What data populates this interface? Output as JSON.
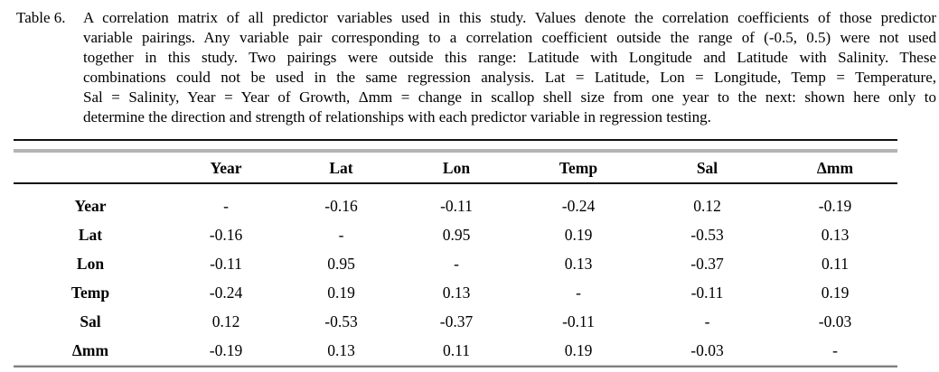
{
  "caption": {
    "label": "Table 6.",
    "lines": [
      "A correlation matrix of all predictor variables used in this study. Values denote the correlation coefficients of those predictor",
      "variable pairings. Any variable pair corresponding to a correlation coefficient outside the range of (-0.5, 0.5) were not used",
      "together in this study. Two pairings were outside this range: Latitude with Longitude and Latitude with Salinity. These",
      "combinations could not be used in the same regression analysis. Lat = Latitude, Lon = Longitude, Temp = Temperature,",
      "Sal = Salinity, Year = Year of Growth, Δmm = change in scallop shell size from one year to the next: shown here only to",
      "determine the direction and strength of relationships with each predictor variable in regression testing."
    ]
  },
  "table": {
    "columns": [
      "",
      "Year",
      "Lat",
      "Lon",
      "Temp",
      "Sal",
      "Δmm"
    ],
    "rows": [
      {
        "label": "Year",
        "values": [
          "-",
          "-0.16",
          "-0.11",
          "-0.24",
          "0.12",
          "-0.19"
        ]
      },
      {
        "label": "Lat",
        "values": [
          "-0.16",
          "-",
          "0.95",
          "0.19",
          "-0.53",
          "0.13"
        ]
      },
      {
        "label": "Lon",
        "values": [
          "-0.11",
          "0.95",
          "-",
          "0.13",
          "-0.37",
          "0.11"
        ]
      },
      {
        "label": "Temp",
        "values": [
          "-0.24",
          "0.19",
          "0.13",
          "-",
          "-0.11",
          "0.19"
        ]
      },
      {
        "label": "Sal",
        "values": [
          "0.12",
          "-0.53",
          "-0.37",
          "-0.11",
          "-",
          "-0.03"
        ]
      },
      {
        "label": "Δmm",
        "values": [
          "-0.19",
          "0.13",
          "0.11",
          "0.19",
          "-0.03",
          "-"
        ]
      }
    ]
  },
  "colors": {
    "text": "#000000",
    "background": "#ffffff",
    "top_rule_black": "#111111",
    "top_rule_gray": "#b4b4b4",
    "bottom_rule_gray": "#7f7f7f"
  }
}
